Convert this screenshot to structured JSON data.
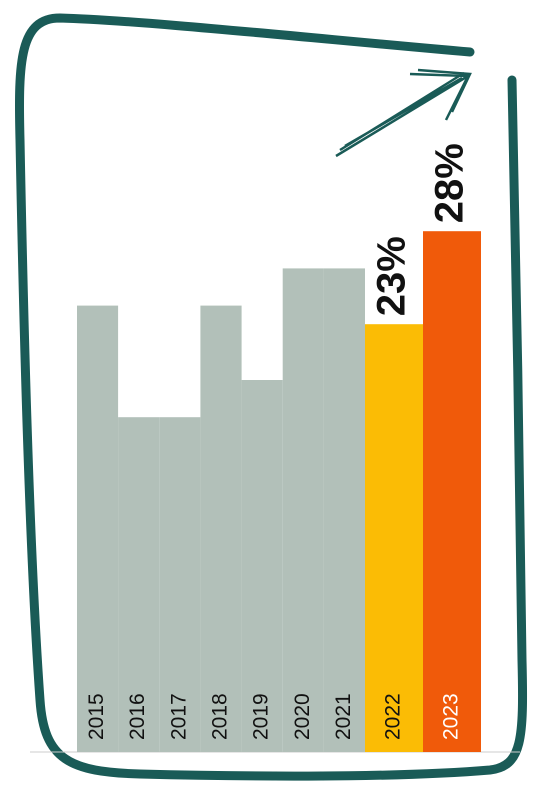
{
  "chart_data": {
    "type": "bar",
    "categories": [
      "2015",
      "2016",
      "2017",
      "2018",
      "2019",
      "2020",
      "2021",
      "2022",
      "2023"
    ],
    "values": [
      24,
      18,
      18,
      24,
      20,
      26,
      26,
      23,
      28
    ],
    "value_labels": [
      null,
      null,
      null,
      null,
      null,
      null,
      null,
      "23%",
      "28%"
    ],
    "colors": [
      "#b2c0b9",
      "#b2c0b9",
      "#b2c0b9",
      "#b2c0b9",
      "#b2c0b9",
      "#b2c0b9",
      "#b2c0b9",
      "#fbbc05",
      "#f05a0a"
    ],
    "label_colors": [
      "#111",
      "#111",
      "#111",
      "#111",
      "#111",
      "#111",
      "#111",
      "#111",
      "#ffffff"
    ]
  }
}
